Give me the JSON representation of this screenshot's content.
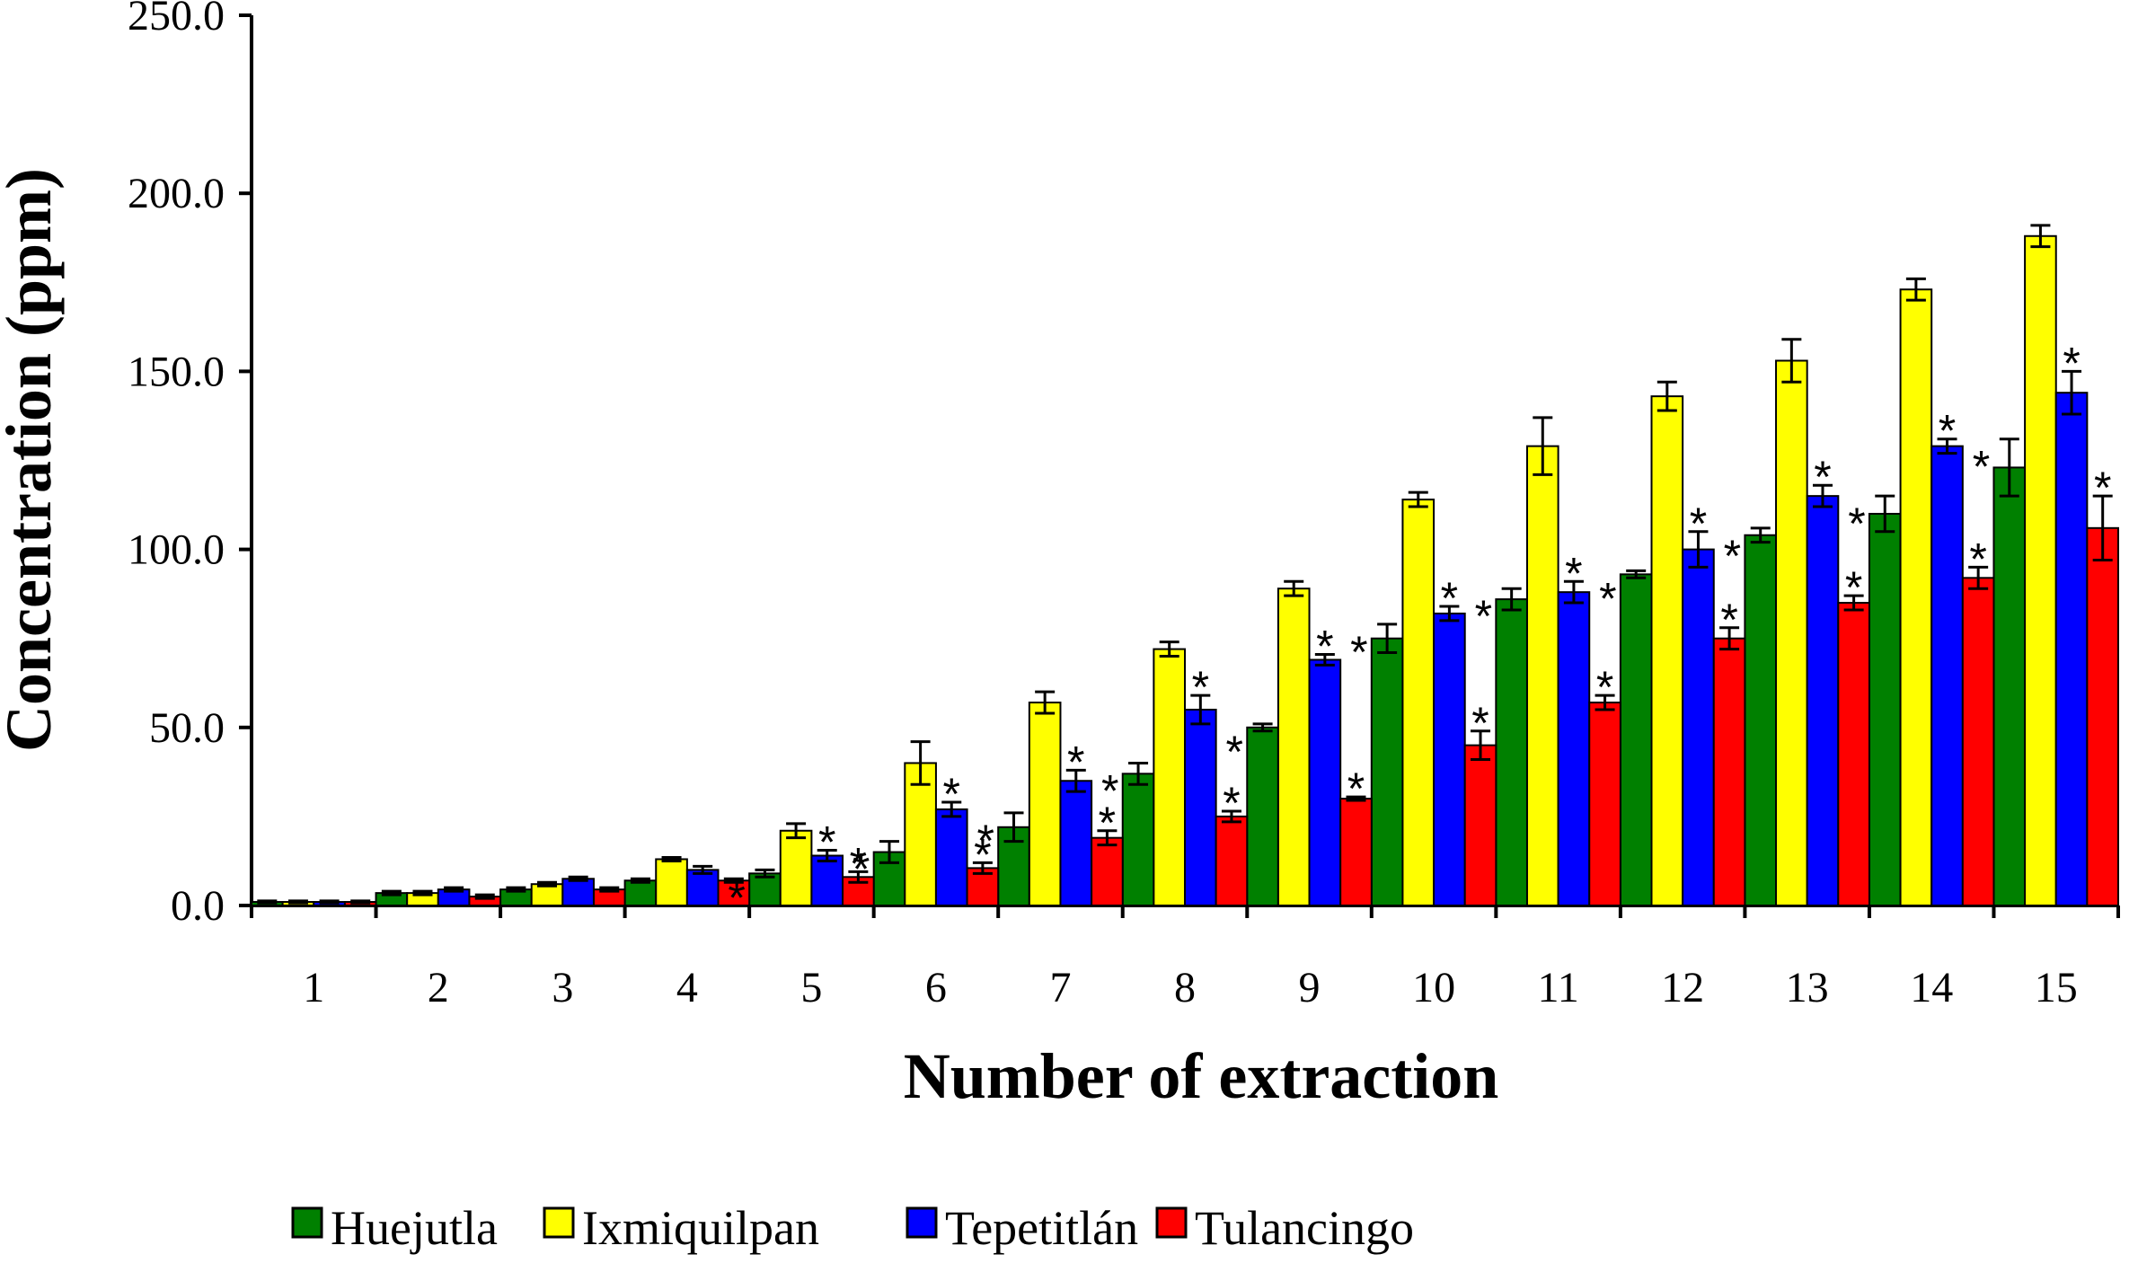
{
  "chart_data": {
    "type": "bar",
    "title": "",
    "xlabel": "Number of extraction",
    "ylabel": "Concentration (ppm)",
    "ylim": [
      0,
      250
    ],
    "yticks": [
      "0.0",
      "50.0",
      "100.0",
      "150.0",
      "200.0",
      "250.0"
    ],
    "ytick_values": [
      0,
      50,
      100,
      150,
      200,
      250
    ],
    "categories": [
      "1",
      "2",
      "3",
      "4",
      "5",
      "6",
      "7",
      "8",
      "9",
      "10",
      "11",
      "12",
      "13",
      "14",
      "15"
    ],
    "legend_position": "bottom",
    "series": [
      {
        "name": "Huejutla",
        "color": "#008000",
        "values": [
          1,
          3.5,
          4.5,
          7,
          9,
          15,
          22,
          37,
          50,
          75,
          86,
          93,
          104,
          110,
          123
        ],
        "errors": [
          0.3,
          0.5,
          0.5,
          0.5,
          1,
          3,
          4,
          3,
          1,
          4,
          3,
          1,
          2,
          5,
          8
        ],
        "significant": [
          false,
          false,
          false,
          false,
          true,
          true,
          true,
          true,
          true,
          true,
          true,
          true,
          true,
          true,
          true
        ]
      },
      {
        "name": "Ixmiquilpan",
        "color": "#FFFF00",
        "values": [
          1,
          3.5,
          6,
          13,
          21,
          40,
          57,
          72,
          89,
          114,
          129,
          143,
          153,
          173,
          188
        ],
        "errors": [
          0.3,
          0.5,
          0.5,
          0.5,
          2,
          6,
          3,
          2,
          2,
          2,
          8,
          4,
          6,
          3,
          3
        ],
        "significant": [
          false,
          false,
          false,
          false,
          false,
          false,
          false,
          false,
          false,
          false,
          false,
          false,
          false,
          false,
          false
        ]
      },
      {
        "name": "Tepetitlán",
        "color": "#0000FF",
        "values": [
          1,
          4.5,
          7.5,
          10,
          14,
          27,
          35,
          55,
          69,
          82,
          88,
          100,
          115,
          129,
          144
        ],
        "errors": [
          0.3,
          0.5,
          0.5,
          1,
          1.5,
          2,
          3,
          4,
          1.5,
          2,
          3,
          5,
          3,
          2,
          6
        ],
        "significant": [
          false,
          false,
          false,
          false,
          true,
          true,
          true,
          true,
          true,
          true,
          true,
          true,
          true,
          true,
          true
        ]
      },
      {
        "name": "Tulancingo",
        "color": "#FF0000",
        "values": [
          1,
          2.5,
          4.5,
          7,
          8,
          10.5,
          19,
          25,
          30,
          45,
          57,
          75,
          85,
          92,
          106
        ],
        "errors": [
          0.3,
          0.5,
          0.5,
          0.5,
          1.5,
          1.5,
          2,
          1.5,
          0.5,
          4,
          2,
          3,
          2,
          3,
          9
        ],
        "significant": [
          false,
          false,
          false,
          false,
          true,
          true,
          true,
          true,
          true,
          true,
          true,
          true,
          true,
          true,
          true
        ]
      }
    ],
    "significance_marker": "*"
  }
}
